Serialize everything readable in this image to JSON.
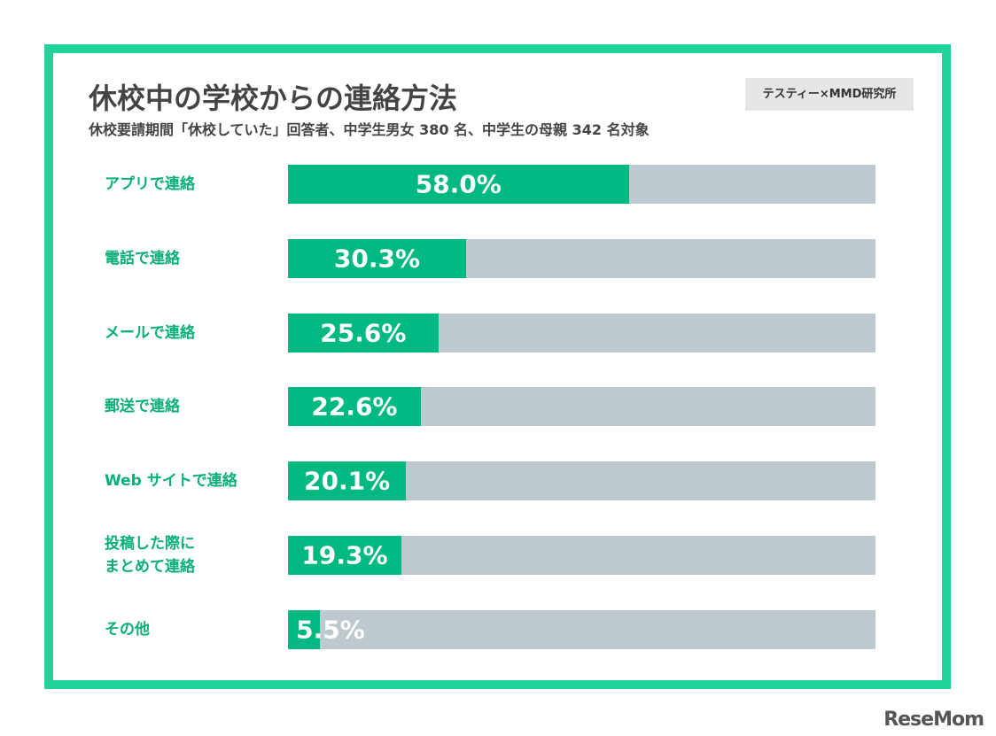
{
  "chart_data": {
    "type": "bar",
    "orientation": "horizontal",
    "title": "休校中の学校からの連絡方法",
    "subtitle": "休校要請期間「休校していた」回答者、中学生男女 380 名、中学生の母親 342 名対象",
    "source": "テスティー×MMD研究所",
    "watermark": "ReseMom",
    "categories": [
      "アプリで連絡",
      "電話で連絡",
      "メールで連絡",
      "郵送で連絡",
      "Web サイトで連絡",
      "投稿した際に\nまとめて連絡",
      "その他"
    ],
    "values": [
      58.0,
      30.3,
      25.6,
      22.6,
      20.1,
      19.3,
      5.5
    ],
    "value_labels": [
      "58.0%",
      "30.3%",
      "25.6%",
      "22.6%",
      "20.1%",
      "19.3%",
      "5.5%"
    ],
    "color": "#00b982",
    "track_color": "#bdc8cf",
    "label_color": "#0aae79",
    "xlim": [
      0,
      100
    ]
  }
}
